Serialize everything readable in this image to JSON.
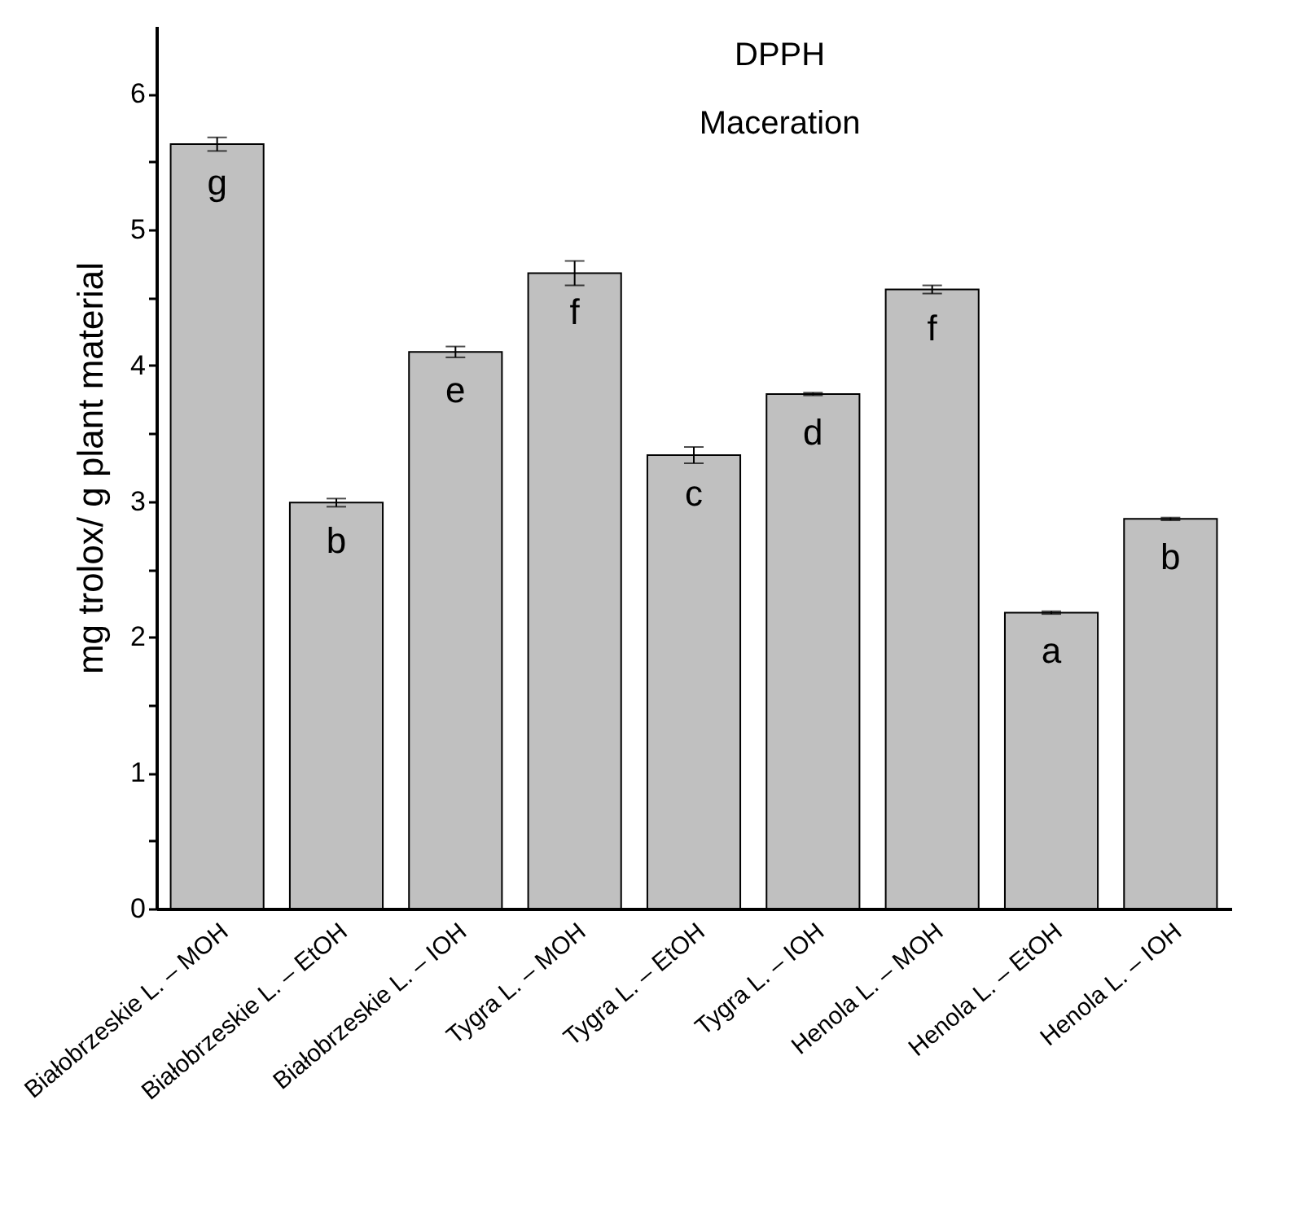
{
  "chart_data": {
    "type": "bar",
    "title": "DPPH",
    "subtitle": "Maceration",
    "ylabel": "mg trolox/ g plant material",
    "categories": [
      "Białobrzeskie L. – MOH",
      "Białobrzeskie L. – EtOH",
      "Białobrzeskie L. – IOH",
      "Tygra L. – MOH",
      "Tygra L. – EtOH",
      "Tygra L. – IOH",
      "Henola L. – MOH",
      "Henola L. – EtOH",
      "Henola L. – IOH"
    ],
    "values": [
      5.63,
      2.99,
      4.1,
      4.68,
      3.34,
      3.79,
      4.56,
      2.18,
      2.87
    ],
    "errors": [
      0.05,
      0.03,
      0.04,
      0.09,
      0.06,
      0.01,
      0.03,
      0.01,
      0.01
    ],
    "color": "#c0c0c0",
    "ylim": [
      0,
      6.5
    ],
    "yticks": [
      0,
      {
        "value": 0.5,
        "label": null
      },
      1,
      {
        "value": 1.5,
        "label": null
      },
      2,
      {
        "value": 2.5,
        "label": null
      },
      3,
      {
        "value": 3.5,
        "label": null
      },
      4,
      {
        "value": 4.5,
        "label": null
      },
      5,
      {
        "value": 5.5,
        "label": null
      },
      6
    ],
    "grid": false,
    "annotations": [
      {
        "text": "g",
        "x": "Białobrzeskie L. – MOH",
        "y": 5.63
      },
      {
        "text": "b",
        "x": "Białobrzeskie L. – EtOH",
        "y": 2.99
      },
      {
        "text": "e",
        "x": "Białobrzeskie L. – IOH",
        "y": 4.1
      },
      {
        "text": "f",
        "x": "Tygra L. – MOH",
        "y": 4.68
      },
      {
        "text": "c",
        "x": "Tygra L. – EtOH",
        "y": 3.34
      },
      {
        "text": "d",
        "x": "Tygra L. – IOH",
        "y": 3.79
      },
      {
        "text": "f",
        "x": "Henola L. – MOH",
        "y": 4.56
      },
      {
        "text": "a",
        "x": "Henola L. – EtOH",
        "y": 2.18
      },
      {
        "text": "b",
        "x": "Henola L. – IOH",
        "y": 2.87
      }
    ]
  }
}
